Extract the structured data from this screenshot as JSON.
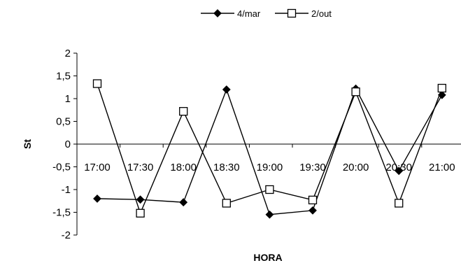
{
  "chart_data": {
    "type": "line",
    "title": "",
    "xlabel": "HORA",
    "ylabel": "St",
    "ylim": [
      -2,
      2
    ],
    "yticks": [
      "2",
      "1,5",
      "1",
      "0,5",
      "0",
      "-0,5",
      "-1",
      "-1,5",
      "-2"
    ],
    "categories": [
      "17:00",
      "17:30",
      "18:00",
      "18:30",
      "19:00",
      "19:30",
      "20:00",
      "20:30",
      "21:00"
    ],
    "grid": false,
    "legend": "top-center",
    "series": [
      {
        "name": "4/mar",
        "marker": "filled-diamond",
        "color": "#000000",
        "values": [
          -1.2,
          -1.22,
          -1.28,
          1.2,
          -1.55,
          -1.46,
          1.22,
          -0.59,
          1.08
        ]
      },
      {
        "name": "2/out",
        "marker": "open-square",
        "color": "#000000",
        "values": [
          1.33,
          -1.52,
          0.72,
          -1.3,
          -1.0,
          -1.23,
          1.15,
          -1.3,
          1.23
        ]
      }
    ]
  }
}
